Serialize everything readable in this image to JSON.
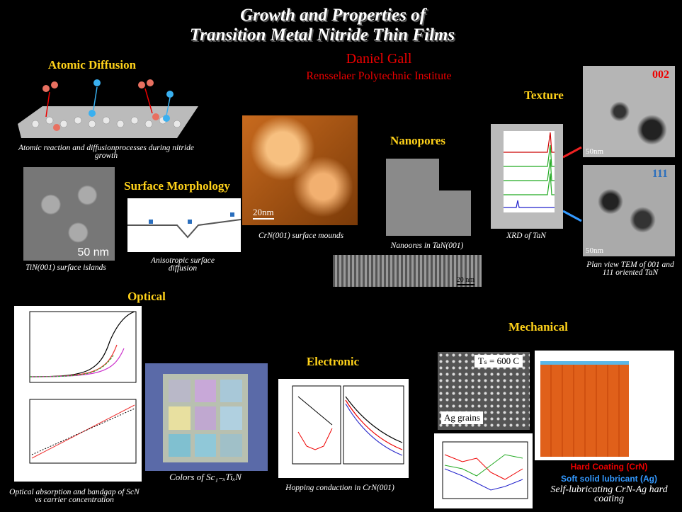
{
  "header": {
    "title_lines": [
      "Growth and Properties of",
      "Transition Metal Nitride Thin Films"
    ],
    "author": "Daniel Gall",
    "affiliation": "Rensselaer Polytechnic Institute"
  },
  "sections": [
    "Atomic Diffusion",
    "Surface Morphology",
    "Texture",
    "Nanopores",
    "Optical",
    "Mechanical",
    "Electronic"
  ],
  "figures": {
    "atomic": {
      "caption": "Atomic reaction and diffusionprocesses during nitride growth"
    },
    "islands": {
      "caption": "TiN(001) surface islands",
      "scale": "50 nm"
    },
    "diffusion": {
      "caption": "Anisotropic surface diffusion"
    },
    "mounds": {
      "caption": "CrN(001) surface mounds",
      "scale": "20nm"
    },
    "nanopores": {
      "caption": "Nanoores in TaN(001)",
      "scale": "20 nm"
    },
    "xrd": {
      "caption": "XRD of TaN"
    },
    "tem": {
      "caption": "Plan view TEM of  001 and 111 oriented TaN",
      "label_top": "002",
      "label_bottom": "111",
      "scale": "50nm"
    },
    "optical": {
      "caption": "Optical absorption and bandgap of ScN vs carrier concentration"
    },
    "colors": {
      "caption": "Colors of Sc₁₋ₓTiₓN"
    },
    "electronic": {
      "caption": "Hopping conduction in CrN(001)"
    },
    "mechanical": {
      "temperature": "Tₛ = 600 C",
      "grains": "Ag grains",
      "hard": "Hard Coating (CrN)",
      "soft": "Soft solid lubricant (Ag)",
      "caption": "Self-lubricating CrN-Ag hard coating"
    }
  }
}
